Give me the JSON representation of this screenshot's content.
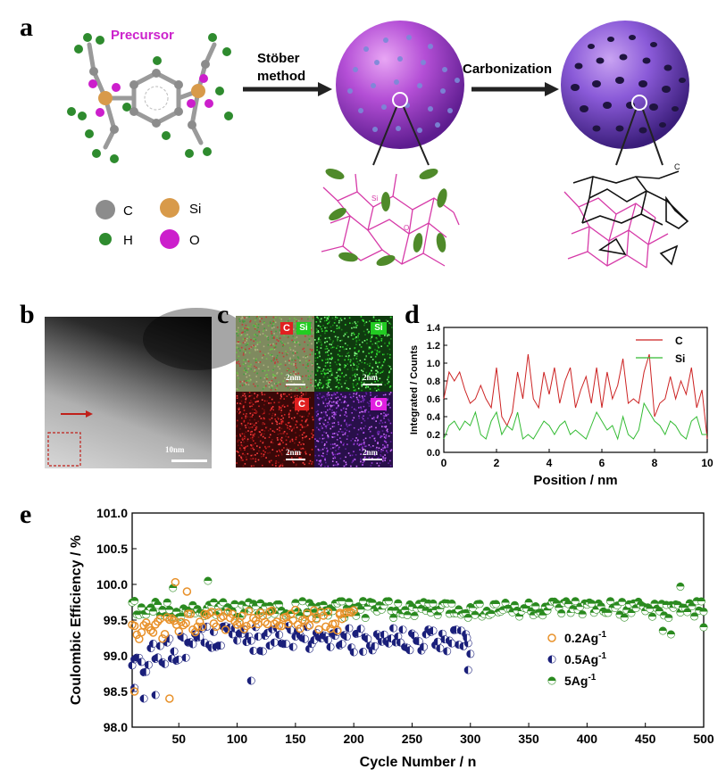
{
  "panel_labels": {
    "a": "a",
    "b": "b",
    "c": "c",
    "d": "d",
    "e": "e"
  },
  "panel_a": {
    "precursor_label": "Precursor",
    "step1_label_line1": "Stöber",
    "step1_label_line2": "method",
    "step2_label": "Carbonization",
    "legend": [
      {
        "symbol": "C",
        "color": "#8c8c8c"
      },
      {
        "symbol": "Si",
        "color": "#d89a4a"
      },
      {
        "symbol": "H",
        "color": "#2e8b2e"
      },
      {
        "symbol": "O",
        "color": "#cc1fcc"
      }
    ],
    "network_si": "Si",
    "network_o": "O",
    "network_c": "C",
    "colors": {
      "precursor": "#cc22cc",
      "network_pink": "#d63aa8",
      "ellipse": "#4f8a2a"
    }
  },
  "panel_b": {
    "scale_label": "10nm"
  },
  "panel_c": {
    "tiles": [
      {
        "badges": [
          "C",
          "Si"
        ],
        "scale": "2nm"
      },
      {
        "badges": [
          "Si"
        ],
        "scale": "2nm"
      },
      {
        "badges": [
          "C"
        ],
        "scale": "2nm"
      },
      {
        "badges": [
          "O"
        ],
        "scale": "2nm"
      }
    ]
  },
  "chart_data": [
    {
      "type": "line",
      "xlabel": "Position / nm",
      "ylabel": "Integrated / Counts",
      "xlim": [
        0,
        10
      ],
      "ylim": [
        0,
        1.4
      ],
      "xticks": [
        "0",
        "2",
        "4",
        "6",
        "8",
        "10"
      ],
      "yticks": [
        "0.0",
        "0.2",
        "0.4",
        "0.6",
        "0.8",
        "1.0",
        "1.2",
        "1.4"
      ],
      "legend_position": "top-right",
      "series": [
        {
          "name": "C",
          "color": "#cc2222",
          "x": [
            0,
            0.2,
            0.4,
            0.6,
            0.8,
            1.0,
            1.2,
            1.4,
            1.6,
            1.8,
            2.0,
            2.2,
            2.4,
            2.6,
            2.8,
            3.0,
            3.2,
            3.4,
            3.6,
            3.8,
            4.0,
            4.2,
            4.4,
            4.6,
            4.8,
            5.0,
            5.2,
            5.4,
            5.6,
            5.8,
            6.0,
            6.2,
            6.4,
            6.6,
            6.8,
            7.0,
            7.2,
            7.4,
            7.6,
            7.8,
            8.0,
            8.2,
            8.4,
            8.6,
            8.8,
            9.0,
            9.2,
            9.4,
            9.6,
            9.8,
            10.0
          ],
          "y": [
            0.6,
            0.9,
            0.8,
            0.9,
            0.7,
            0.55,
            0.6,
            0.75,
            0.6,
            0.5,
            0.95,
            0.4,
            0.3,
            0.45,
            0.9,
            0.6,
            1.1,
            0.6,
            0.5,
            0.9,
            0.65,
            0.95,
            0.55,
            0.8,
            0.95,
            0.5,
            0.7,
            0.85,
            0.55,
            0.95,
            0.5,
            0.9,
            0.6,
            0.75,
            1.05,
            0.55,
            0.6,
            0.55,
            0.9,
            1.1,
            0.4,
            0.55,
            0.6,
            0.85,
            0.6,
            0.8,
            0.65,
            0.95,
            0.5,
            0.7,
            0.15
          ]
        },
        {
          "name": "Si",
          "color": "#33bb33",
          "x": [
            0,
            0.2,
            0.4,
            0.6,
            0.8,
            1.0,
            1.2,
            1.4,
            1.6,
            1.8,
            2.0,
            2.2,
            2.4,
            2.6,
            2.8,
            3.0,
            3.2,
            3.4,
            3.6,
            3.8,
            4.0,
            4.2,
            4.4,
            4.6,
            4.8,
            5.0,
            5.2,
            5.4,
            5.6,
            5.8,
            6.0,
            6.2,
            6.4,
            6.6,
            6.8,
            7.0,
            7.2,
            7.4,
            7.6,
            7.8,
            8.0,
            8.2,
            8.4,
            8.6,
            8.8,
            9.0,
            9.2,
            9.4,
            9.6,
            9.8,
            10.0
          ],
          "y": [
            0.15,
            0.3,
            0.35,
            0.25,
            0.35,
            0.3,
            0.45,
            0.2,
            0.15,
            0.35,
            0.45,
            0.2,
            0.3,
            0.25,
            0.45,
            0.15,
            0.2,
            0.15,
            0.25,
            0.35,
            0.3,
            0.2,
            0.3,
            0.35,
            0.2,
            0.25,
            0.2,
            0.15,
            0.3,
            0.45,
            0.35,
            0.25,
            0.3,
            0.15,
            0.4,
            0.2,
            0.15,
            0.25,
            0.55,
            0.45,
            0.35,
            0.3,
            0.2,
            0.35,
            0.3,
            0.2,
            0.15,
            0.35,
            0.4,
            0.2,
            0.2
          ]
        }
      ]
    },
    {
      "type": "scatter",
      "xlabel": "Cycle Number / n",
      "ylabel": "Coulombic Efficiency / %",
      "xlim": [
        10,
        500
      ],
      "ylim": [
        98.0,
        101.0
      ],
      "xticks": [
        "50",
        "100",
        "150",
        "200",
        "250",
        "300",
        "350",
        "400",
        "450",
        "500"
      ],
      "yticks": [
        "98.0",
        "98.5",
        "99.0",
        "99.5",
        "100.0",
        "100.5",
        "101.0"
      ],
      "legend_position": "right",
      "series": [
        {
          "name": "0.2Ag",
          "name_sup": "-1",
          "color": "#e8912a",
          "marker": "open-circle",
          "cycles": [
            10,
            200
          ],
          "mean": 99.45,
          "spread": 0.2
        },
        {
          "name": "0.5Ag",
          "name_sup": "-1",
          "color": "#1a1f7a",
          "marker": "half-circle",
          "cycles": [
            10,
            300
          ],
          "mean": 99.2,
          "spread": 0.2
        },
        {
          "name": "5Ag",
          "name_sup": "-1",
          "color": "#2a8a1f",
          "marker": "half-circle-top",
          "cycles": [
            10,
            500
          ],
          "mean": 99.65,
          "spread": 0.12
        }
      ],
      "outliers": {
        "s0": [
          [
            47,
            100.03
          ],
          [
            42,
            98.4
          ],
          [
            57,
            99.9
          ],
          [
            12,
            98.5
          ],
          [
            188,
            99.6
          ]
        ],
        "s1": [
          [
            12,
            98.55
          ],
          [
            20,
            98.4
          ],
          [
            30,
            98.45
          ],
          [
            112,
            98.65
          ],
          [
            298,
            98.8
          ],
          [
            297,
            99.25
          ]
        ],
        "s2": [
          [
            75,
            100.05
          ],
          [
            45,
            99.95
          ],
          [
            480,
            99.97
          ],
          [
            465,
            99.35
          ],
          [
            472,
            99.3
          ],
          [
            500,
            99.4
          ]
        ]
      }
    }
  ]
}
